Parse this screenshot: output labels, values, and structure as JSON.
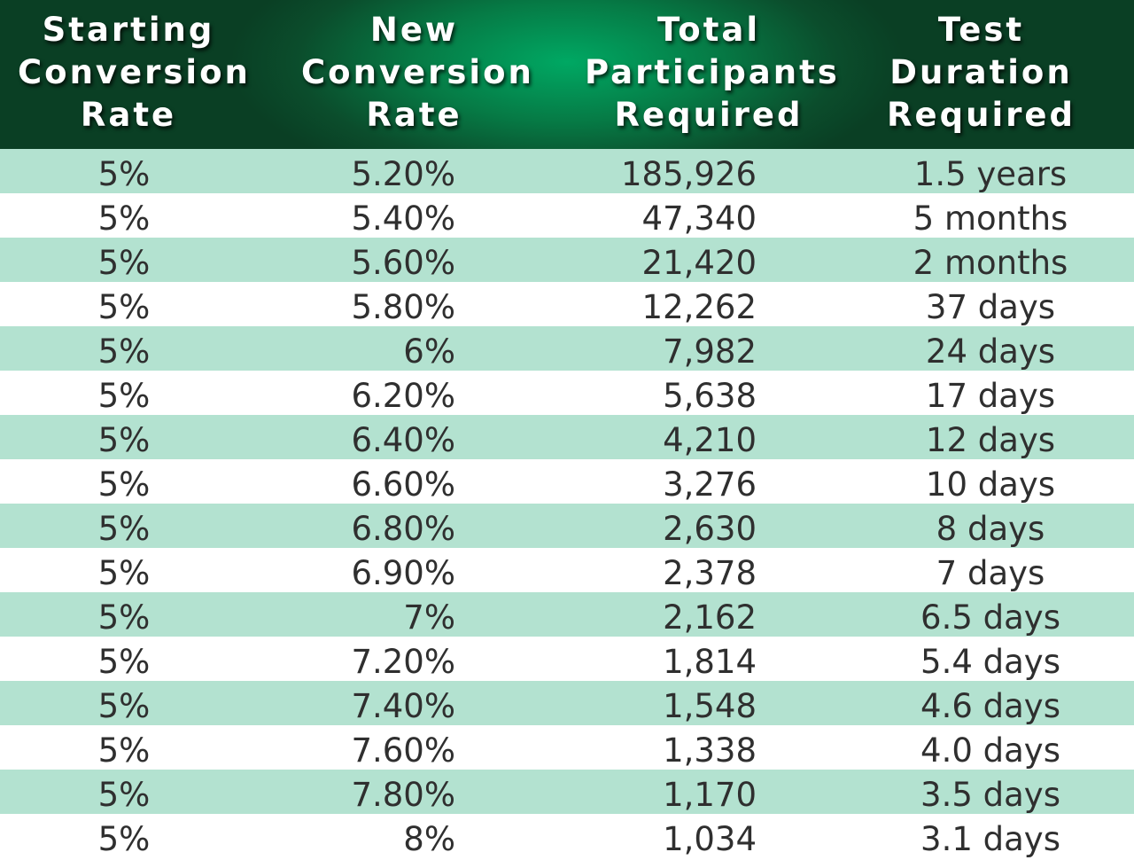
{
  "chart_data": {
    "type": "table",
    "columns": [
      {
        "lines": [
          "Starting",
          "Conversion",
          "Rate"
        ]
      },
      {
        "lines": [
          "New",
          "Conversion",
          "Rate"
        ]
      },
      {
        "lines": [
          "Total",
          "Participants",
          "Required"
        ]
      },
      {
        "lines": [
          "Test",
          "Duration",
          "Required"
        ]
      }
    ],
    "rows": [
      [
        "5%",
        "5.20%",
        "185,926",
        "1.5 years"
      ],
      [
        "5%",
        "5.40%",
        "47,340",
        "5 months"
      ],
      [
        "5%",
        "5.60%",
        "21,420",
        "2 months"
      ],
      [
        "5%",
        "5.80%",
        "12,262",
        "37 days"
      ],
      [
        "5%",
        "6%",
        "7,982",
        "24 days"
      ],
      [
        "5%",
        "6.20%",
        "5,638",
        "17 days"
      ],
      [
        "5%",
        "6.40%",
        "4,210",
        "12 days"
      ],
      [
        "5%",
        "6.60%",
        "3,276",
        "10 days"
      ],
      [
        "5%",
        "6.80%",
        "2,630",
        "8 days"
      ],
      [
        "5%",
        "6.90%",
        "2,378",
        "7 days"
      ],
      [
        "5%",
        "7%",
        "2,162",
        "6.5 days"
      ],
      [
        "5%",
        "7.20%",
        "1,814",
        "5.4 days"
      ],
      [
        "5%",
        "7.40%",
        "1,548",
        "4.6 days"
      ],
      [
        "5%",
        "7.60%",
        "1,338",
        "4.0 days"
      ],
      [
        "5%",
        "7.80%",
        "1,170",
        "3.5 days"
      ],
      [
        "5%",
        "8%",
        "1,034",
        "3.1 days"
      ]
    ],
    "colors": {
      "header_dark": "#0a3f24",
      "header_light": "#00a863",
      "band": "#b3e2d0",
      "text": "#2f2f2f",
      "header_text": "#ffffff"
    }
  }
}
